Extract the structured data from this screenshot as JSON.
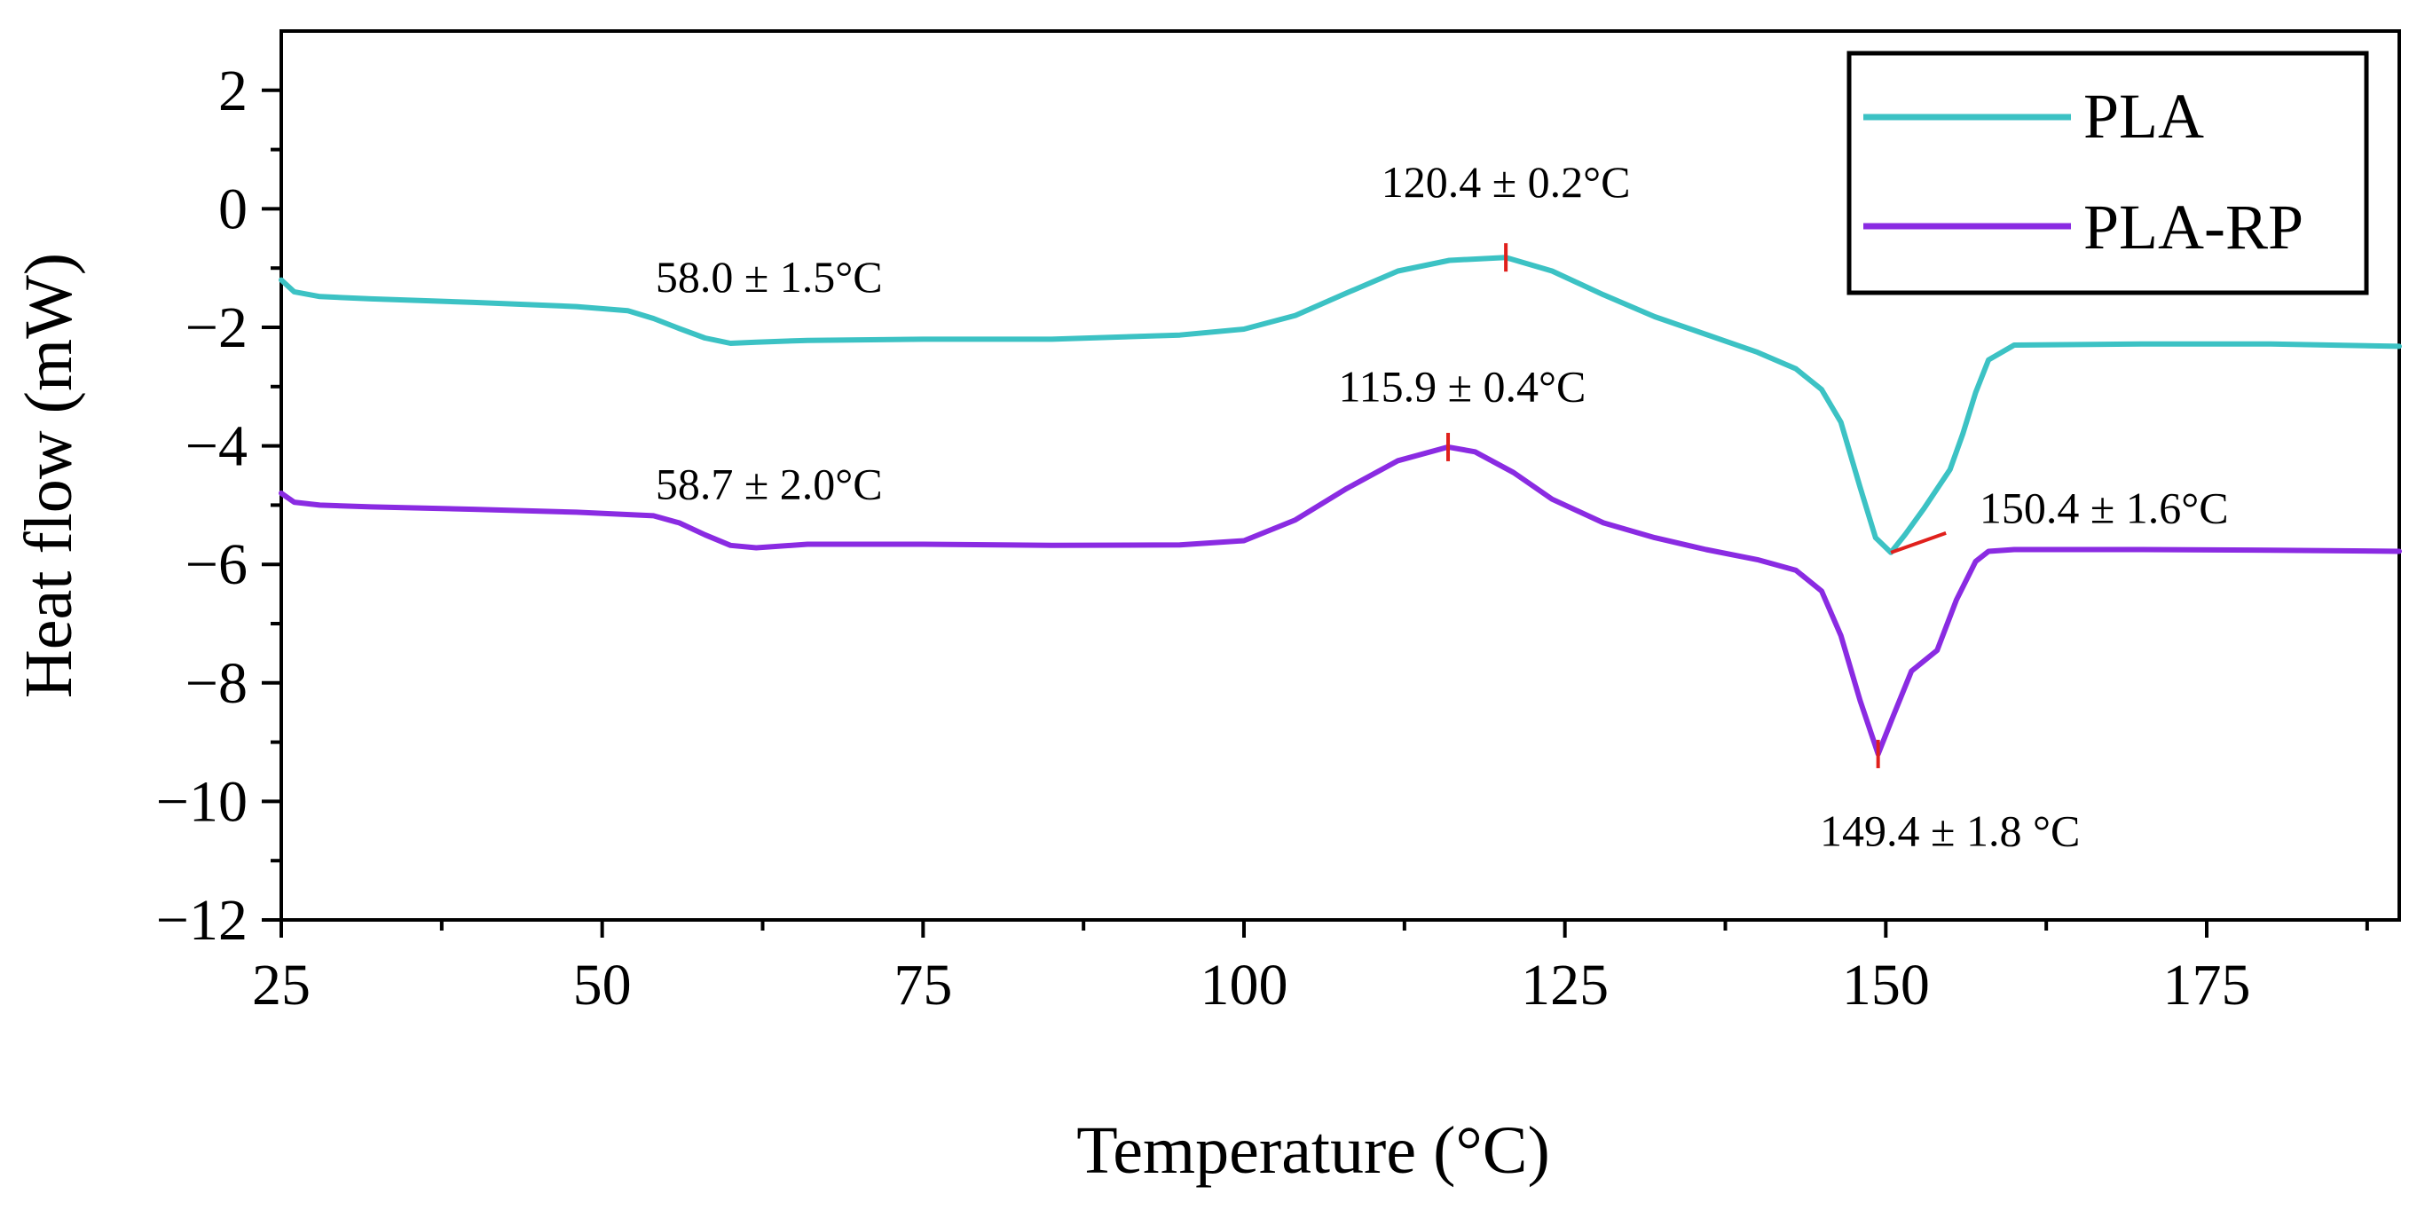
{
  "chart_data": {
    "type": "line",
    "title": "",
    "xlabel": "Temperature (°C)",
    "ylabel": "Heat flow (mW)",
    "xlim": [
      25,
      190
    ],
    "ylim": [
      -12,
      3
    ],
    "xticks": [
      25,
      50,
      75,
      100,
      125,
      150,
      175
    ],
    "yticks": [
      2,
      0,
      -2,
      -4,
      -6,
      -8,
      -10,
      -12
    ],
    "xtick_labels": [
      "25",
      "50",
      "75",
      "100",
      "125",
      "150",
      "175"
    ],
    "ytick_labels": [
      "2",
      "0",
      "−2",
      "−4",
      "−6",
      "−8",
      "−10",
      "−12"
    ],
    "legend_position": "top-right",
    "series": [
      {
        "name": "PLA",
        "color": "#3cc2c4",
        "x": [
          25,
          26,
          28,
          32,
          40,
          48,
          52,
          54,
          56,
          58,
          60,
          62,
          66,
          75,
          85,
          95,
          100,
          104,
          108,
          112,
          116,
          120.4,
          124,
          128,
          132,
          136,
          140,
          143,
          145,
          146.5,
          148,
          149.2,
          150.4,
          151.5,
          153,
          155,
          156,
          157,
          158,
          160,
          170,
          180,
          190
        ],
        "y": [
          -1.2,
          -1.4,
          -1.48,
          -1.52,
          -1.58,
          -1.65,
          -1.72,
          -1.85,
          -2.02,
          -2.18,
          -2.27,
          -2.25,
          -2.22,
          -2.2,
          -2.2,
          -2.13,
          -2.03,
          -1.8,
          -1.42,
          -1.05,
          -0.87,
          -0.82,
          -1.05,
          -1.45,
          -1.82,
          -2.12,
          -2.42,
          -2.7,
          -3.05,
          -3.6,
          -4.7,
          -5.55,
          -5.8,
          -5.5,
          -5.05,
          -4.4,
          -3.8,
          -3.1,
          -2.55,
          -2.3,
          -2.28,
          -2.28,
          -2.32
        ]
      },
      {
        "name": "PLA-RP",
        "color": "#8a2be2",
        "x": [
          25,
          26,
          28,
          32,
          40,
          48,
          54,
          56,
          58,
          60,
          62,
          66,
          75,
          85,
          95,
          100,
          104,
          108,
          112,
          115.9,
          118,
          121,
          124,
          128,
          132,
          136,
          140,
          143,
          145,
          146.5,
          148,
          149.4,
          150.5,
          152,
          154,
          155.5,
          157,
          158,
          160,
          170,
          180,
          190
        ],
        "y": [
          -4.8,
          -4.95,
          -5.0,
          -5.03,
          -5.07,
          -5.12,
          -5.18,
          -5.3,
          -5.5,
          -5.68,
          -5.72,
          -5.66,
          -5.66,
          -5.68,
          -5.67,
          -5.6,
          -5.25,
          -4.72,
          -4.25,
          -4.02,
          -4.1,
          -4.45,
          -4.9,
          -5.3,
          -5.55,
          -5.75,
          -5.92,
          -6.1,
          -6.45,
          -7.2,
          -8.3,
          -9.2,
          -8.6,
          -7.8,
          -7.45,
          -6.6,
          -5.95,
          -5.78,
          -5.75,
          -5.75,
          -5.76,
          -5.78
        ]
      }
    ],
    "annotations": [
      {
        "text": "58.0 ± 1.5°C",
        "x": 63,
        "y": -1.4
      },
      {
        "text": "120.4 ± 0.2°C",
        "x": 120.4,
        "y": 0.2
      },
      {
        "text": "150.4 ± 1.6°C",
        "x": 167,
        "y": -5.3
      },
      {
        "text": "58.7 ± 2.0°C",
        "x": 63,
        "y": -4.9
      },
      {
        "text": "115.9 ± 0.4°C",
        "x": 117,
        "y": -3.25
      },
      {
        "text": "149.4 ± 1.8 °C",
        "x": 155,
        "y": -10.75
      }
    ],
    "markers": [
      {
        "series": "PLA",
        "x": 120.4,
        "y": -0.82,
        "style": "vtick"
      },
      {
        "series": "PLA",
        "x": 150.4,
        "y": -5.8,
        "style": "slant"
      },
      {
        "series": "PLA-RP",
        "x": 115.9,
        "y": -4.02,
        "style": "vtick"
      },
      {
        "series": "PLA-RP",
        "x": 149.4,
        "y": -9.2,
        "style": "vtick"
      }
    ],
    "marker_color": "#e0201c"
  }
}
